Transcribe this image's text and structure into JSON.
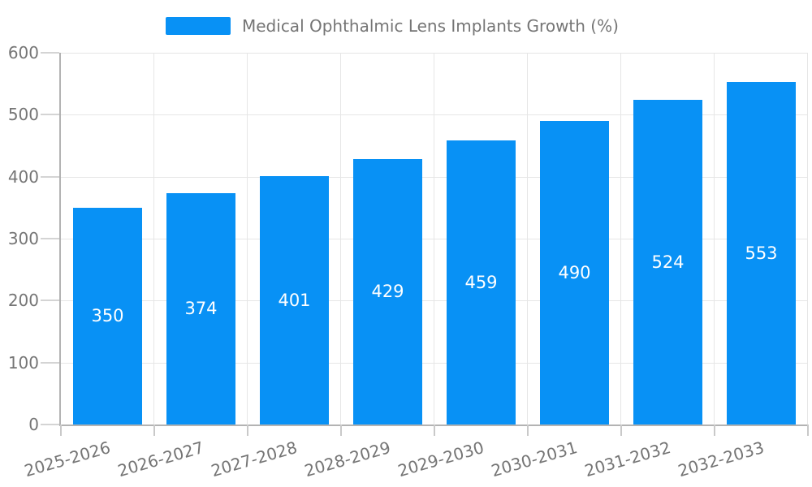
{
  "chart_data": {
    "type": "bar",
    "title": "Medical Ophthalmic Lens Implants Growth (%)",
    "legend": {
      "label": "Medical Ophthalmic Lens Implants Growth (%)",
      "position": "top-center"
    },
    "categories": [
      "2025-2026",
      "2026-2027",
      "2027-2028",
      "2028-2029",
      "2029-2030",
      "2030-2031",
      "2031-2032",
      "2032-2033"
    ],
    "series": [
      {
        "name": "Medical Ophthalmic Lens Implants Growth (%)",
        "values": [
          350,
          374,
          401,
          429,
          459,
          490,
          524,
          553
        ]
      }
    ],
    "values": [
      350,
      374,
      401,
      429,
      459,
      490,
      524,
      553
    ],
    "value_labels_visible": true,
    "value_label_position": "inside-center",
    "xlabel": "",
    "ylabel": "",
    "ylim": [
      0,
      600
    ],
    "yticks": [
      0,
      100,
      200,
      300,
      400,
      500,
      600
    ],
    "grid": true,
    "x_label_rotation_deg": -16,
    "colors": {
      "bar": "#0891f5",
      "value_label": "#ffffff",
      "axis_line": "#b3b3b3",
      "grid_line": "#e6e6e6",
      "y_tick_line": "#d4d4d4",
      "x_tick_line": "#c9c9c9",
      "text": "#757575",
      "background": "#ffffff"
    }
  }
}
